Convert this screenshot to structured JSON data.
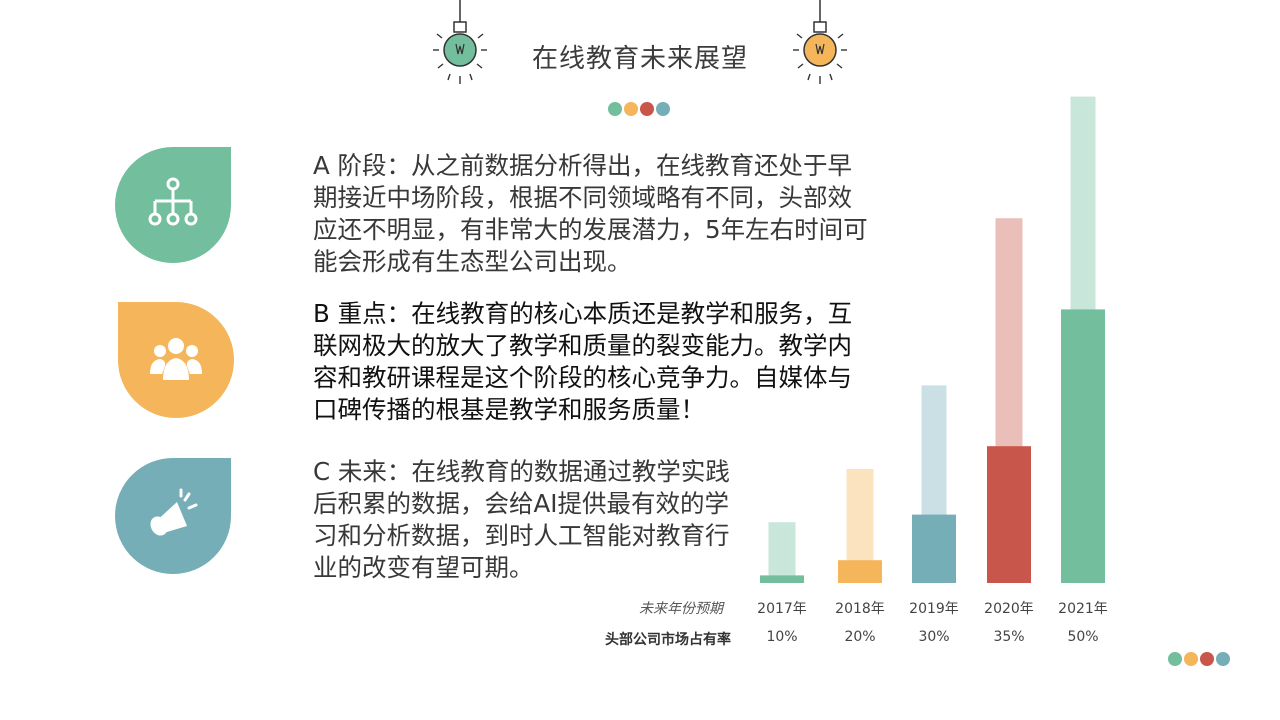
{
  "header": {
    "title": "在线教育未来展望"
  },
  "colors": {
    "green": "#72be9d",
    "orange": "#f5b55a",
    "red": "#c9564a",
    "teal": "#76aeb7",
    "text": "#383838"
  },
  "icons": [
    {
      "name": "hierarchy-icon",
      "color": "#72be9d"
    },
    {
      "name": "team-icon",
      "color": "#f5b55a"
    },
    {
      "name": "megaphone-icon",
      "color": "#76aeb7"
    }
  ],
  "paragraphs": {
    "a": "A 阶段：从之前数据分析得出，在线教育还处于早期接近中场阶段，根据不同领域略有不同，头部效应还不明显，有非常大的发展潜力，5年左右时间可能会形成有生态型公司出现。",
    "b": "B 重点：在线教育的核心本质还是教学和服务，互联网极大的放大了教学和质量的裂变能力。教学内容和教研课程是这个阶段的核心竞争力。自媒体与口碑传播的根基是教学和服务质量！",
    "c": "C 未来：在线教育的数据通过教学实践后积累的数据，会给AI提供最有效的学习和分析数据，到时人工智能对教育行业的改变有望可期。"
  },
  "table": {
    "year_row_label": "未来年份预期",
    "share_row_label": "头部公司市场占有率"
  },
  "chart_data": {
    "type": "bar",
    "categories": [
      "2017年",
      "2018年",
      "2019年",
      "2020年",
      "2021年"
    ],
    "values": [
      10,
      20,
      30,
      35,
      50
    ],
    "value_labels": [
      "10%",
      "20%",
      "30%",
      "35%",
      "50%"
    ],
    "bar_colors": [
      "#72be9d",
      "#f5b55a",
      "#76aeb7",
      "#c9564a",
      "#72be9d"
    ],
    "foreground_heights": [
      1,
      3,
      9,
      18,
      36
    ],
    "background_heights": [
      8,
      15,
      26,
      48,
      64
    ]
  }
}
